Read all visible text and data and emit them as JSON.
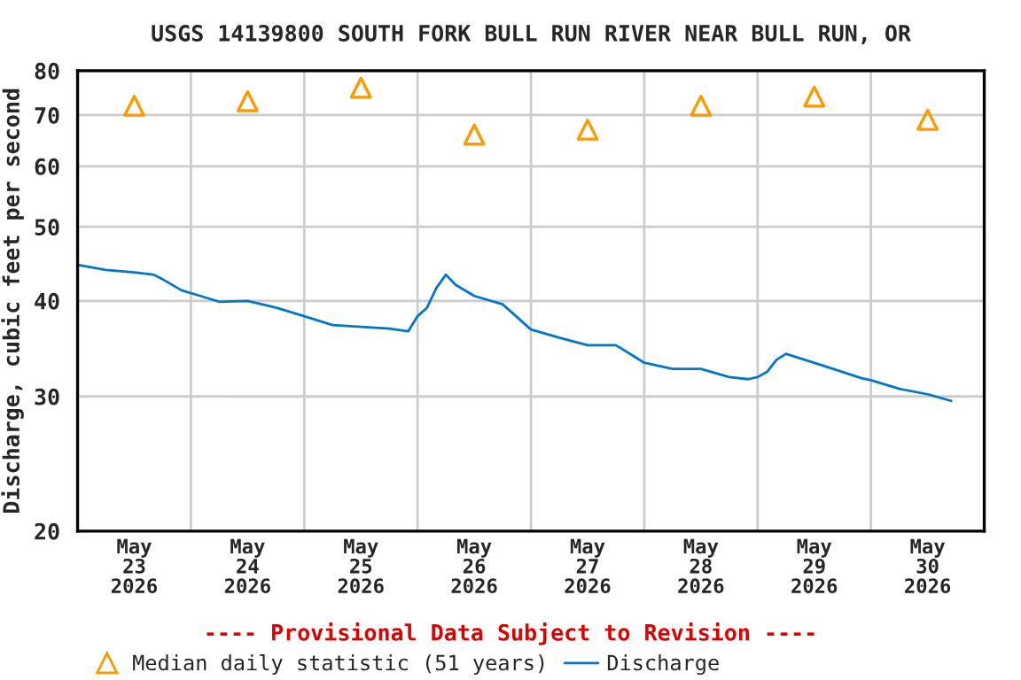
{
  "chart_data": {
    "type": "line",
    "title": "USGS 14139800 SOUTH FORK BULL RUN RIVER NEAR BULL RUN, OR",
    "ylabel": "Discharge, cubic feet per second",
    "log": "y",
    "ylim": [
      20,
      80
    ],
    "yticks": [
      20,
      30,
      40,
      50,
      60,
      70,
      80
    ],
    "xlim": [
      "2026-05-23T00:00",
      "2026-05-31T00:00"
    ],
    "xticks": [
      {
        "value": "2026-05-23T12:00",
        "label": "May\n23\n2026"
      },
      {
        "value": "2026-05-24T12:00",
        "label": "May\n24\n2026"
      },
      {
        "value": "2026-05-25T12:00",
        "label": "May\n25\n2026"
      },
      {
        "value": "2026-05-26T12:00",
        "label": "May\n26\n2026"
      },
      {
        "value": "2026-05-27T12:00",
        "label": "May\n27\n2026"
      },
      {
        "value": "2026-05-28T12:00",
        "label": "May\n28\n2026"
      },
      {
        "value": "2026-05-29T12:00",
        "label": "May\n29\n2026"
      },
      {
        "value": "2026-05-30T12:00",
        "label": "May\n30\n2026"
      },
      {
        "value": "2026-05-24T00:00",
        "label": null
      },
      {
        "value": "2026-05-25T00:00",
        "label": null
      },
      {
        "value": "2026-05-26T00:00",
        "label": null
      },
      {
        "value": "2026-05-27T00:00",
        "label": null
      },
      {
        "value": "2026-05-28T00:00",
        "label": null
      },
      {
        "value": "2026-05-29T00:00",
        "label": null
      },
      {
        "value": "2026-05-30T00:00",
        "label": null
      }
    ],
    "grid": true,
    "legend": "bottom",
    "annotations": [
      "---- Provisional Data Subject to Revision ----"
    ],
    "series": [
      {
        "name": "Median daily statistic (51 years)",
        "type": "scatter",
        "marker": "triangle",
        "color": "#ff9900",
        "x": [
          "2026-05-23T12:00",
          "2026-05-24T12:00",
          "2026-05-25T12:00",
          "2026-05-26T12:00",
          "2026-05-27T12:00",
          "2026-05-28T12:00",
          "2026-05-29T12:00",
          "2026-05-30T12:00"
        ],
        "values": [
          72,
          73,
          76,
          66,
          67,
          72,
          74,
          69
        ]
      },
      {
        "name": "Discharge",
        "type": "line",
        "marker": "none",
        "color": "#0077cc",
        "x": [
          "2026-05-23T00:00",
          "2026-05-23T06:00",
          "2026-05-23T12:00",
          "2026-05-23T16:00",
          "2026-05-23T18:00",
          "2026-05-23T22:00",
          "2026-05-24T02:00",
          "2026-05-24T06:00",
          "2026-05-24T12:00",
          "2026-05-24T18:00",
          "2026-05-25T00:00",
          "2026-05-25T06:00",
          "2026-05-25T12:00",
          "2026-05-25T18:00",
          "2026-05-25T22:00",
          "2026-05-26T00:00",
          "2026-05-26T02:00",
          "2026-05-26T04:00",
          "2026-05-26T06:00",
          "2026-05-26T08:00",
          "2026-05-26T12:00",
          "2026-05-26T18:00",
          "2026-05-27T00:00",
          "2026-05-27T06:00",
          "2026-05-27T12:00",
          "2026-05-27T18:00",
          "2026-05-27T22:00",
          "2026-05-28T00:00",
          "2026-05-28T06:00",
          "2026-05-28T12:00",
          "2026-05-28T18:00",
          "2026-05-28T22:00",
          "2026-05-29T00:00",
          "2026-05-29T02:00",
          "2026-05-29T04:00",
          "2026-05-29T06:00",
          "2026-05-29T10:00",
          "2026-05-29T16:00",
          "2026-05-29T22:00",
          "2026-05-30T00:00",
          "2026-05-30T06:00",
          "2026-05-30T12:00",
          "2026-05-30T17:00"
        ],
        "values": [
          44.6,
          43.9,
          43.6,
          43.3,
          42.7,
          41.3,
          40.6,
          39.9,
          40.0,
          39.2,
          38.2,
          37.2,
          37.0,
          36.8,
          36.5,
          38.2,
          39.2,
          41.6,
          43.3,
          42.0,
          40.6,
          39.6,
          36.7,
          35.8,
          35.0,
          35.0,
          33.8,
          33.2,
          32.6,
          32.6,
          31.8,
          31.6,
          31.8,
          32.3,
          33.5,
          34.1,
          33.5,
          32.6,
          31.7,
          31.5,
          30.7,
          30.2,
          29.6
        ]
      }
    ]
  }
}
